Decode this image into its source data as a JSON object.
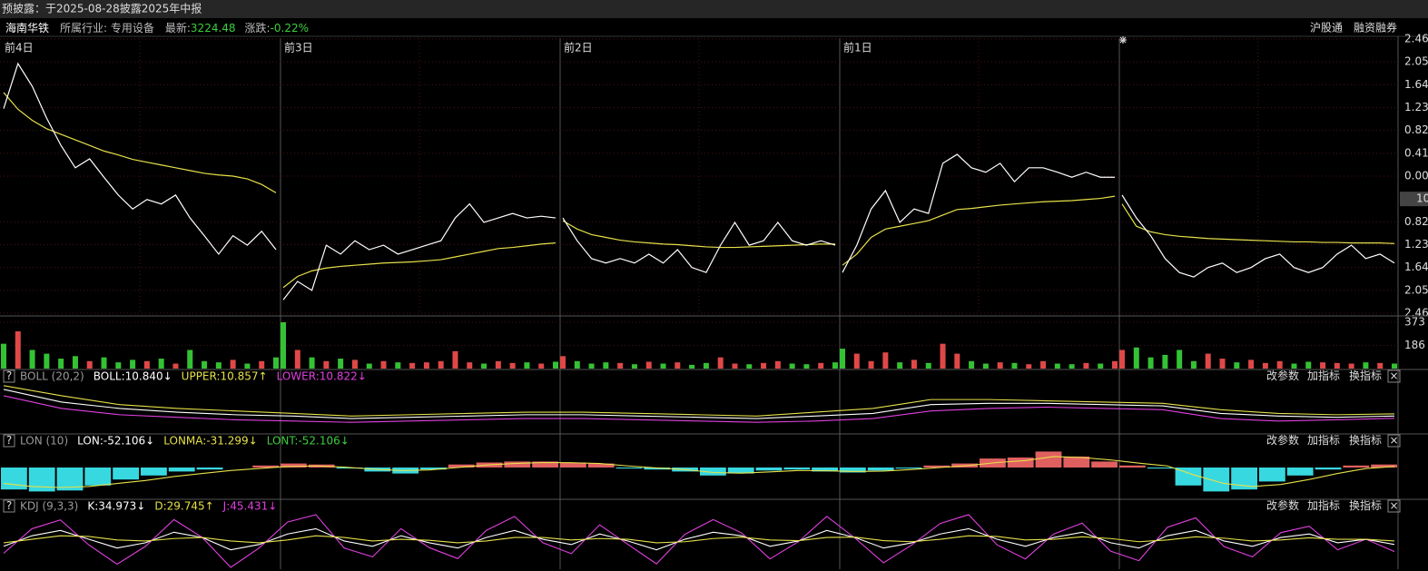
{
  "header": {
    "notice": "预披露：于2025-08-28披露2025年中报",
    "name": "海南华铁",
    "industry": "所属行业: 专用设备",
    "latest_label": "最新:",
    "latest": "3224.48",
    "change_label": "涨跌:",
    "change": "-0.22%",
    "tags": [
      "沪股通",
      "融资融券"
    ]
  },
  "price_chart": {
    "ylim": [
      -2.46,
      2.46
    ],
    "yticks": [
      2.46,
      2.05,
      1.64,
      1.23,
      0.82,
      0.41,
      {
        "value": 0,
        "label": "0.00"
      },
      {
        "value": -0.82,
        "label": "0.82"
      },
      {
        "value": -1.23,
        "label": "1.23"
      },
      {
        "value": -1.64,
        "label": "1.64"
      },
      {
        "value": -2.05,
        "label": "2.05"
      },
      {
        "value": -2.46,
        "label": "2.46"
      }
    ],
    "price_tag": "10",
    "days": [
      {
        "label": "前4日",
        "price": [
          1.21,
          2.02,
          1.61,
          1.04,
          0.55,
          0.15,
          0.31,
          -0.02,
          -0.34,
          -0.59,
          -0.42,
          -0.5,
          -0.34,
          -0.75,
          -1.07,
          -1.4,
          -1.07,
          -1.24,
          -0.99,
          -1.32
        ],
        "avg": [
          1.5,
          1.2,
          1.0,
          0.85,
          0.75,
          0.65,
          0.55,
          0.45,
          0.38,
          0.3,
          0.25,
          0.2,
          0.15,
          0.1,
          0.05,
          0.02,
          0,
          -0.05,
          -0.15,
          -0.3
        ],
        "volume": [
          200,
          300,
          150,
          120,
          80,
          100,
          60,
          90,
          50,
          70,
          60,
          80,
          40,
          150,
          60,
          50,
          70,
          40,
          60,
          90
        ]
      },
      {
        "label": "前3日",
        "price": [
          -2.22,
          -1.89,
          -2.05,
          -1.24,
          -1.4,
          -1.16,
          -1.32,
          -1.24,
          -1.4,
          -1.32,
          -1.24,
          -1.16,
          -0.75,
          -0.5,
          -0.83,
          -0.75,
          -0.67,
          -0.75,
          -0.72,
          -0.75
        ],
        "avg": [
          -2.0,
          -1.8,
          -1.7,
          -1.65,
          -1.62,
          -1.6,
          -1.58,
          -1.56,
          -1.55,
          -1.54,
          -1.52,
          -1.5,
          -1.45,
          -1.4,
          -1.35,
          -1.3,
          -1.28,
          -1.25,
          -1.22,
          -1.2
        ],
        "volume": [
          373,
          150,
          90,
          60,
          80,
          70,
          40,
          60,
          50,
          45,
          50,
          60,
          140,
          50,
          40,
          60,
          45,
          50,
          40,
          55
        ]
      },
      {
        "label": "前2日",
        "price": [
          -0.75,
          -1.16,
          -1.48,
          -1.56,
          -1.48,
          -1.56,
          -1.4,
          -1.56,
          -1.32,
          -1.64,
          -1.73,
          -1.24,
          -0.83,
          -1.24,
          -1.16,
          -0.83,
          -1.16,
          -1.24,
          -1.16,
          -1.24
        ],
        "avg": [
          -0.8,
          -0.95,
          -1.05,
          -1.1,
          -1.15,
          -1.18,
          -1.2,
          -1.22,
          -1.23,
          -1.25,
          -1.27,
          -1.28,
          -1.28,
          -1.27,
          -1.26,
          -1.25,
          -1.24,
          -1.23,
          -1.22,
          -1.22
        ],
        "volume": [
          100,
          60,
          40,
          50,
          45,
          35,
          55,
          40,
          50,
          30,
          45,
          90,
          40,
          35,
          45,
          60,
          40,
          35,
          45,
          50
        ]
      },
      {
        "label": "前1日",
        "price": [
          -1.73,
          -1.24,
          -0.59,
          -0.26,
          -0.83,
          -0.59,
          -0.67,
          0.23,
          0.39,
          0.15,
          0.07,
          0.23,
          -0.1,
          0.15,
          0.15,
          0.07,
          -0.02,
          0.07,
          -0.02,
          -0.02
        ],
        "avg": [
          -1.6,
          -1.4,
          -1.1,
          -0.95,
          -0.9,
          -0.85,
          -0.8,
          -0.7,
          -0.6,
          -0.58,
          -0.55,
          -0.52,
          -0.5,
          -0.48,
          -0.46,
          -0.45,
          -0.44,
          -0.42,
          -0.4,
          -0.36
        ],
        "volume": [
          160,
          120,
          60,
          130,
          50,
          70,
          45,
          200,
          120,
          60,
          40,
          50,
          45,
          35,
          60,
          40,
          35,
          45,
          40,
          60
        ]
      },
      {
        "price": [
          -0.34,
          -0.75,
          -1.07,
          -1.48,
          -1.73,
          -1.81,
          -1.64,
          -1.56,
          -1.73,
          -1.64,
          -1.48,
          -1.4,
          -1.64,
          -1.73,
          -1.64,
          -1.4,
          -1.24,
          -1.48,
          -1.4,
          -1.56
        ],
        "avg": [
          -0.5,
          -0.9,
          -1.0,
          -1.05,
          -1.08,
          -1.1,
          -1.12,
          -1.13,
          -1.14,
          -1.15,
          -1.16,
          -1.17,
          -1.18,
          -1.18,
          -1.19,
          -1.19,
          -1.2,
          -1.2,
          -1.2,
          -1.21
        ],
        "volume": [
          150,
          170,
          90,
          110,
          150,
          60,
          120,
          80,
          50,
          70,
          45,
          60,
          40,
          55,
          50,
          45,
          40,
          50,
          45,
          40
        ]
      }
    ]
  },
  "volume": {
    "ylim": [
      0,
      373
    ],
    "yticks": [
      373,
      186
    ]
  },
  "toolbar": [
    "改参数",
    "加指标",
    "换指标"
  ],
  "indicators": [
    {
      "title": "BOLL (20,2)",
      "readouts": [
        {
          "text": "BOLL:10.840↓",
          "color": "#ffffff"
        },
        {
          "text": "UPPER:10.857↑",
          "color": "#e6e04a"
        },
        {
          "text": "LOWER:10.822↓",
          "color": "#e040e0"
        }
      ],
      "ylim": [
        10.72,
        11.1
      ],
      "lines": [
        {
          "color": "#ffffff",
          "values": [
            11.05,
            10.95,
            10.9,
            10.87,
            10.85,
            10.84,
            10.82,
            10.83,
            10.84,
            10.85,
            10.85,
            10.84,
            10.83,
            10.82,
            10.84,
            10.86,
            10.93,
            10.94,
            10.94,
            10.93,
            10.92,
            10.86,
            10.84,
            10.83,
            10.84
          ]
        },
        {
          "color": "#e6e04a",
          "values": [
            11.08,
            11.0,
            10.93,
            10.9,
            10.88,
            10.86,
            10.84,
            10.85,
            10.86,
            10.87,
            10.87,
            10.86,
            10.85,
            10.84,
            10.87,
            10.9,
            10.97,
            10.97,
            10.96,
            10.95,
            10.94,
            10.89,
            10.86,
            10.85,
            10.857
          ]
        },
        {
          "color": "#e040e0",
          "values": [
            11.0,
            10.9,
            10.85,
            10.83,
            10.81,
            10.8,
            10.79,
            10.8,
            10.81,
            10.82,
            10.82,
            10.81,
            10.8,
            10.79,
            10.8,
            10.82,
            10.88,
            10.9,
            10.91,
            10.9,
            10.89,
            10.82,
            10.8,
            10.81,
            10.822
          ]
        }
      ]
    },
    {
      "title": "LON (10)",
      "readouts": [
        {
          "text": "LON:-52.106↓",
          "color": "#ffffff"
        },
        {
          "text": "LONMA:-31.299↓",
          "color": "#e6e04a"
        },
        {
          "text": "LONT:-52.106↓",
          "color": "#3ccf3c"
        }
      ],
      "ylim": [
        -150,
        100
      ],
      "bars": [
        -110,
        -120,
        -115,
        -90,
        -60,
        -40,
        -20,
        -10,
        0,
        10,
        20,
        15,
        -5,
        -20,
        -30,
        -10,
        15,
        25,
        30,
        30,
        25,
        20,
        -5,
        -10,
        -20,
        -40,
        -30,
        -15,
        -10,
        -20,
        -25,
        -15,
        -5,
        10,
        20,
        45,
        50,
        80,
        55,
        30,
        10,
        -5,
        -90,
        -120,
        -110,
        -70,
        -40,
        -10,
        10,
        15
      ],
      "lines": [
        {
          "color": "#e6e04a",
          "values": [
            -80,
            -95,
            -100,
            -95,
            -80,
            -65,
            -45,
            -30,
            -15,
            -5,
            5,
            8,
            2,
            -8,
            -15,
            -12,
            0,
            12,
            20,
            25,
            24,
            20,
            8,
            -2,
            -10,
            -25,
            -28,
            -22,
            -15,
            -16,
            -20,
            -18,
            -10,
            0,
            10,
            25,
            35,
            55,
            50,
            38,
            22,
            8,
            -40,
            -80,
            -95,
            -85,
            -60,
            -30,
            -5,
            5
          ]
        }
      ]
    },
    {
      "title": "KDJ (9,3,3)",
      "readouts": [
        {
          "text": "K:34.973↓",
          "color": "#ffffff"
        },
        {
          "text": "D:29.745↑",
          "color": "#e6e04a"
        },
        {
          "text": "J:45.431↓",
          "color": "#e040e0"
        }
      ],
      "ylim": [
        -30,
        125
      ],
      "lines": [
        {
          "color": "#e040e0",
          "values": [
            10,
            80,
            105,
            34,
            -21,
            30,
            106,
            55,
            -30,
            25,
            99,
            120,
            25,
            0,
            80,
            26,
            -5,
            75,
            115,
            40,
            9,
            91,
            35,
            -20,
            64,
            106,
            68,
            -6,
            43,
            115,
            53,
            -17,
            34,
            95,
            120,
            34,
            -6,
            65,
            96,
            16,
            -11,
            84,
            111,
            29,
            0,
            69,
            87,
            20,
            50,
            15
          ]
        },
        {
          "color": "#ffffff",
          "values": [
            30,
            60,
            75,
            50,
            25,
            40,
            70,
            55,
            20,
            35,
            65,
            80,
            45,
            30,
            60,
            40,
            25,
            55,
            75,
            50,
            35,
            65,
            45,
            20,
            50,
            70,
            60,
            30,
            45,
            75,
            55,
            25,
            40,
            65,
            80,
            50,
            30,
            55,
            70,
            40,
            25,
            60,
            75,
            45,
            30,
            55,
            65,
            40,
            50,
            35
          ]
        },
        {
          "color": "#e6e04a",
          "values": [
            40,
            50,
            60,
            58,
            48,
            45,
            52,
            55,
            45,
            40,
            48,
            60,
            55,
            45,
            50,
            47,
            40,
            45,
            55,
            55,
            48,
            52,
            50,
            40,
            43,
            52,
            56,
            48,
            46,
            55,
            56,
            46,
            43,
            50,
            60,
            58,
            48,
            50,
            57,
            52,
            43,
            48,
            57,
            53,
            45,
            48,
            54,
            50,
            50,
            45
          ]
        }
      ]
    }
  ]
}
